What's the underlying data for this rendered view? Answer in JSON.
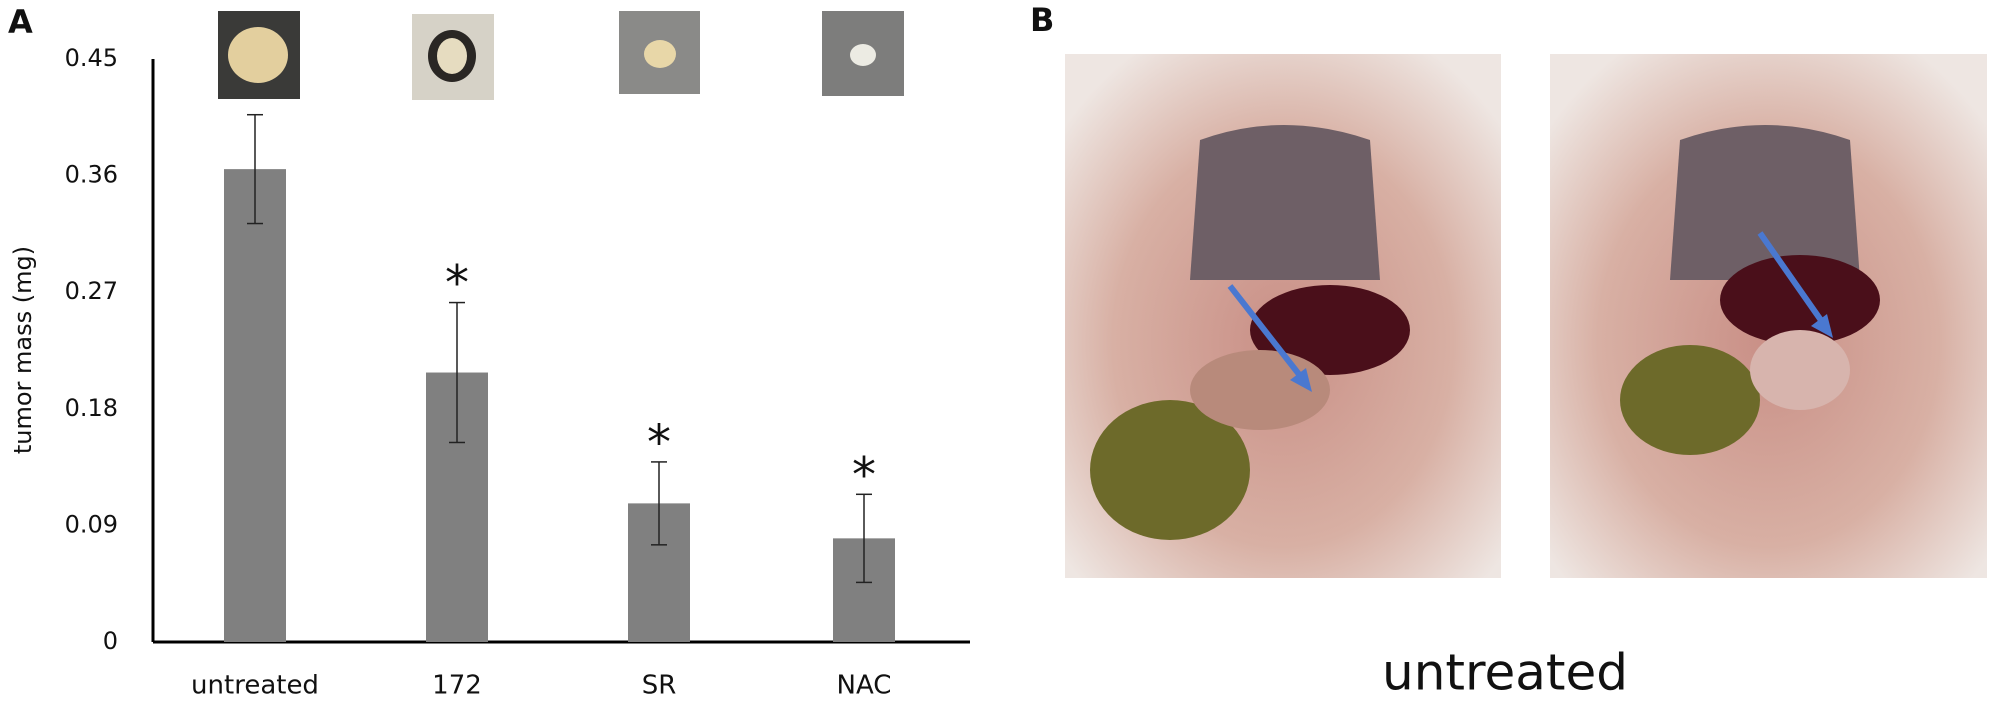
{
  "panel_labels": [
    "A",
    "B"
  ],
  "chart_data": {
    "type": "bar",
    "y_label": "tumor mass (mg)",
    "categories": [
      "untreated",
      "172",
      "SR",
      "NAC"
    ],
    "values": [
      0.365,
      0.208,
      0.107,
      0.08
    ],
    "errors": [
      0.042,
      0.054,
      0.032,
      0.034
    ],
    "significance": [
      null,
      "*",
      "*",
      "*"
    ],
    "color": "#808080",
    "ylim": [
      0,
      0.45
    ],
    "yticks": [
      0,
      0.09,
      0.18,
      0.27,
      0.36,
      0.45
    ],
    "grid": false
  },
  "photo_caption": "untreated"
}
